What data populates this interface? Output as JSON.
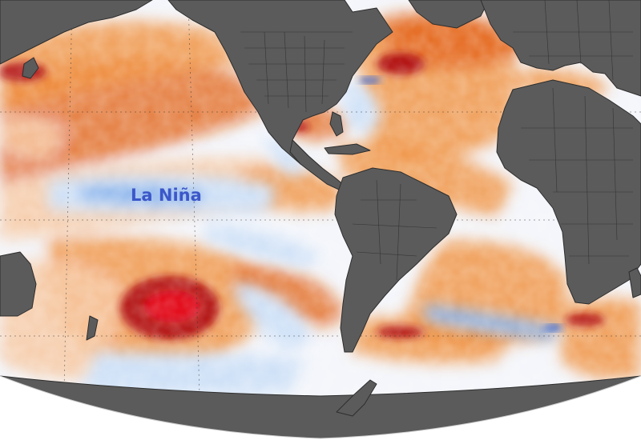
{
  "map": {
    "annotation": "La Niña",
    "colors": {
      "background": "#ffffff",
      "land": "#5b5b5b",
      "land_border": "#2e2e2e",
      "sea_neutral": "#f4f6fb",
      "anomaly_warm_light": "#f7c9a3",
      "anomaly_warm": "#f0913f",
      "anomaly_warm_strong": "#e25f16",
      "anomaly_hot": "#b31414",
      "anomaly_extreme": "#e30d1f",
      "anomaly_cool_light": "#cfe1f7",
      "anomaly_cool": "#8fb7ec",
      "anomaly_cool_strong": "#2f5fd0",
      "label": "#3b57c9",
      "grid": "#333333"
    },
    "features": {
      "land_icon": "continent-shape",
      "label_icon": "text-annotation"
    }
  }
}
